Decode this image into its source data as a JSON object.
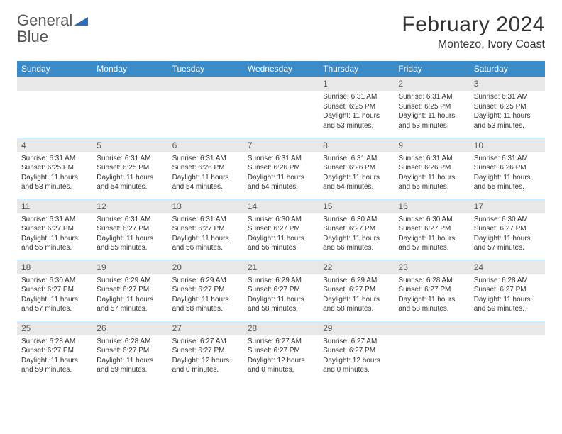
{
  "logo": {
    "word1": "General",
    "word2": "Blue"
  },
  "title": "February 2024",
  "location": "Montezo, Ivory Coast",
  "colors": {
    "header_bg": "#3b8bc9",
    "header_text": "#ffffff",
    "daynum_bg": "#e8e8e8",
    "row_border": "#2a5a8a",
    "logo_gray": "#555555",
    "logo_blue": "#2a6ebb",
    "text": "#333333",
    "background": "#ffffff"
  },
  "typography": {
    "title_fontsize": 30,
    "location_fontsize": 16,
    "dayheader_fontsize": 12,
    "daynum_fontsize": 12,
    "body_fontsize": 10,
    "font_family": "Arial"
  },
  "day_headers": [
    "Sunday",
    "Monday",
    "Tuesday",
    "Wednesday",
    "Thursday",
    "Friday",
    "Saturday"
  ],
  "weeks": [
    [
      {
        "blank": true
      },
      {
        "blank": true
      },
      {
        "blank": true
      },
      {
        "blank": true
      },
      {
        "num": "1",
        "sunrise": "Sunrise: 6:31 AM",
        "sunset": "Sunset: 6:25 PM",
        "daylight": "Daylight: 11 hours and 53 minutes."
      },
      {
        "num": "2",
        "sunrise": "Sunrise: 6:31 AM",
        "sunset": "Sunset: 6:25 PM",
        "daylight": "Daylight: 11 hours and 53 minutes."
      },
      {
        "num": "3",
        "sunrise": "Sunrise: 6:31 AM",
        "sunset": "Sunset: 6:25 PM",
        "daylight": "Daylight: 11 hours and 53 minutes."
      }
    ],
    [
      {
        "num": "4",
        "sunrise": "Sunrise: 6:31 AM",
        "sunset": "Sunset: 6:25 PM",
        "daylight": "Daylight: 11 hours and 53 minutes."
      },
      {
        "num": "5",
        "sunrise": "Sunrise: 6:31 AM",
        "sunset": "Sunset: 6:25 PM",
        "daylight": "Daylight: 11 hours and 54 minutes."
      },
      {
        "num": "6",
        "sunrise": "Sunrise: 6:31 AM",
        "sunset": "Sunset: 6:26 PM",
        "daylight": "Daylight: 11 hours and 54 minutes."
      },
      {
        "num": "7",
        "sunrise": "Sunrise: 6:31 AM",
        "sunset": "Sunset: 6:26 PM",
        "daylight": "Daylight: 11 hours and 54 minutes."
      },
      {
        "num": "8",
        "sunrise": "Sunrise: 6:31 AM",
        "sunset": "Sunset: 6:26 PM",
        "daylight": "Daylight: 11 hours and 54 minutes."
      },
      {
        "num": "9",
        "sunrise": "Sunrise: 6:31 AM",
        "sunset": "Sunset: 6:26 PM",
        "daylight": "Daylight: 11 hours and 55 minutes."
      },
      {
        "num": "10",
        "sunrise": "Sunrise: 6:31 AM",
        "sunset": "Sunset: 6:26 PM",
        "daylight": "Daylight: 11 hours and 55 minutes."
      }
    ],
    [
      {
        "num": "11",
        "sunrise": "Sunrise: 6:31 AM",
        "sunset": "Sunset: 6:27 PM",
        "daylight": "Daylight: 11 hours and 55 minutes."
      },
      {
        "num": "12",
        "sunrise": "Sunrise: 6:31 AM",
        "sunset": "Sunset: 6:27 PM",
        "daylight": "Daylight: 11 hours and 55 minutes."
      },
      {
        "num": "13",
        "sunrise": "Sunrise: 6:31 AM",
        "sunset": "Sunset: 6:27 PM",
        "daylight": "Daylight: 11 hours and 56 minutes."
      },
      {
        "num": "14",
        "sunrise": "Sunrise: 6:30 AM",
        "sunset": "Sunset: 6:27 PM",
        "daylight": "Daylight: 11 hours and 56 minutes."
      },
      {
        "num": "15",
        "sunrise": "Sunrise: 6:30 AM",
        "sunset": "Sunset: 6:27 PM",
        "daylight": "Daylight: 11 hours and 56 minutes."
      },
      {
        "num": "16",
        "sunrise": "Sunrise: 6:30 AM",
        "sunset": "Sunset: 6:27 PM",
        "daylight": "Daylight: 11 hours and 57 minutes."
      },
      {
        "num": "17",
        "sunrise": "Sunrise: 6:30 AM",
        "sunset": "Sunset: 6:27 PM",
        "daylight": "Daylight: 11 hours and 57 minutes."
      }
    ],
    [
      {
        "num": "18",
        "sunrise": "Sunrise: 6:30 AM",
        "sunset": "Sunset: 6:27 PM",
        "daylight": "Daylight: 11 hours and 57 minutes."
      },
      {
        "num": "19",
        "sunrise": "Sunrise: 6:29 AM",
        "sunset": "Sunset: 6:27 PM",
        "daylight": "Daylight: 11 hours and 57 minutes."
      },
      {
        "num": "20",
        "sunrise": "Sunrise: 6:29 AM",
        "sunset": "Sunset: 6:27 PM",
        "daylight": "Daylight: 11 hours and 58 minutes."
      },
      {
        "num": "21",
        "sunrise": "Sunrise: 6:29 AM",
        "sunset": "Sunset: 6:27 PM",
        "daylight": "Daylight: 11 hours and 58 minutes."
      },
      {
        "num": "22",
        "sunrise": "Sunrise: 6:29 AM",
        "sunset": "Sunset: 6:27 PM",
        "daylight": "Daylight: 11 hours and 58 minutes."
      },
      {
        "num": "23",
        "sunrise": "Sunrise: 6:28 AM",
        "sunset": "Sunset: 6:27 PM",
        "daylight": "Daylight: 11 hours and 58 minutes."
      },
      {
        "num": "24",
        "sunrise": "Sunrise: 6:28 AM",
        "sunset": "Sunset: 6:27 PM",
        "daylight": "Daylight: 11 hours and 59 minutes."
      }
    ],
    [
      {
        "num": "25",
        "sunrise": "Sunrise: 6:28 AM",
        "sunset": "Sunset: 6:27 PM",
        "daylight": "Daylight: 11 hours and 59 minutes."
      },
      {
        "num": "26",
        "sunrise": "Sunrise: 6:28 AM",
        "sunset": "Sunset: 6:27 PM",
        "daylight": "Daylight: 11 hours and 59 minutes."
      },
      {
        "num": "27",
        "sunrise": "Sunrise: 6:27 AM",
        "sunset": "Sunset: 6:27 PM",
        "daylight": "Daylight: 12 hours and 0 minutes."
      },
      {
        "num": "28",
        "sunrise": "Sunrise: 6:27 AM",
        "sunset": "Sunset: 6:27 PM",
        "daylight": "Daylight: 12 hours and 0 minutes."
      },
      {
        "num": "29",
        "sunrise": "Sunrise: 6:27 AM",
        "sunset": "Sunset: 6:27 PM",
        "daylight": "Daylight: 12 hours and 0 minutes."
      },
      {
        "blank": true
      },
      {
        "blank": true
      }
    ]
  ]
}
